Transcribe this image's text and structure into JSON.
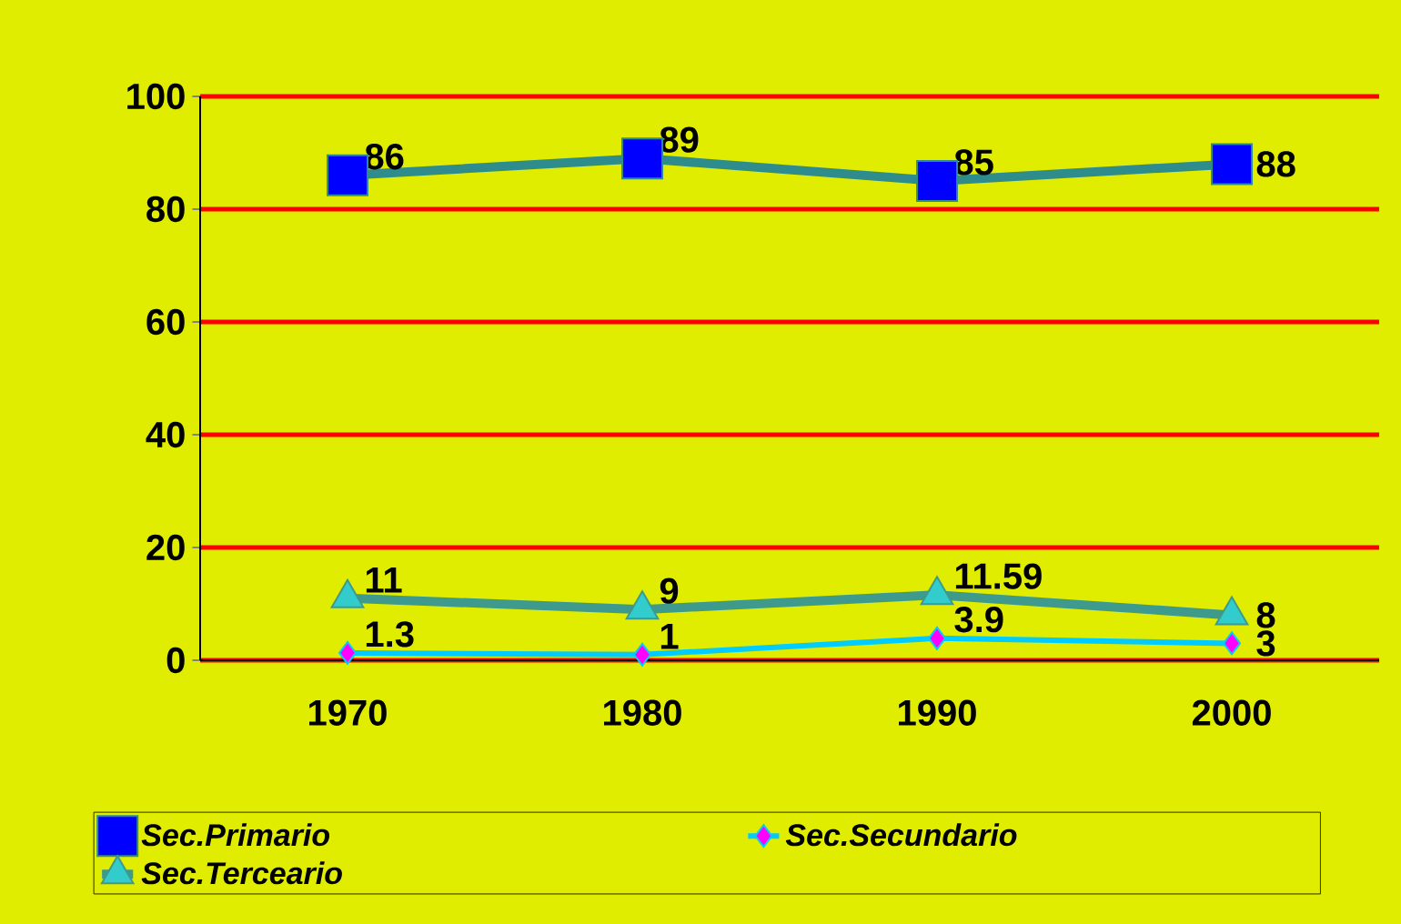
{
  "chart_data": {
    "type": "line",
    "categories": [
      "1970",
      "1980",
      "1990",
      "2000"
    ],
    "series": [
      {
        "name": "Sec.Primario",
        "color": "#2e8c8c",
        "colors": [
          "#0000ff",
          "#0000ff",
          "#0000ff",
          "#0000ff"
        ],
        "marker": "square",
        "values": [
          86,
          89,
          85,
          88
        ]
      },
      {
        "name": "Sec.Secundario",
        "color": "#00ccff",
        "colors": [
          "#ff00ff",
          "#ff00ff",
          "#ff00ff",
          "#ff00ff"
        ],
        "marker": "diamond",
        "values": [
          1.3,
          1,
          3.9,
          3
        ]
      },
      {
        "name": "Sec.Terceario",
        "color": "#3d9a8c",
        "colors": [
          "#33cccc",
          "#33cccc",
          "#33cccc",
          "#33cccc"
        ],
        "marker": "triangle",
        "values": [
          11,
          9,
          11.59,
          8
        ]
      }
    ],
    "ylim": [
      0,
      100
    ],
    "yticks": [
      0,
      20,
      40,
      60,
      80,
      100
    ],
    "grid": "y",
    "legend": "bottom",
    "data_labels": true,
    "line_style": "solid"
  }
}
